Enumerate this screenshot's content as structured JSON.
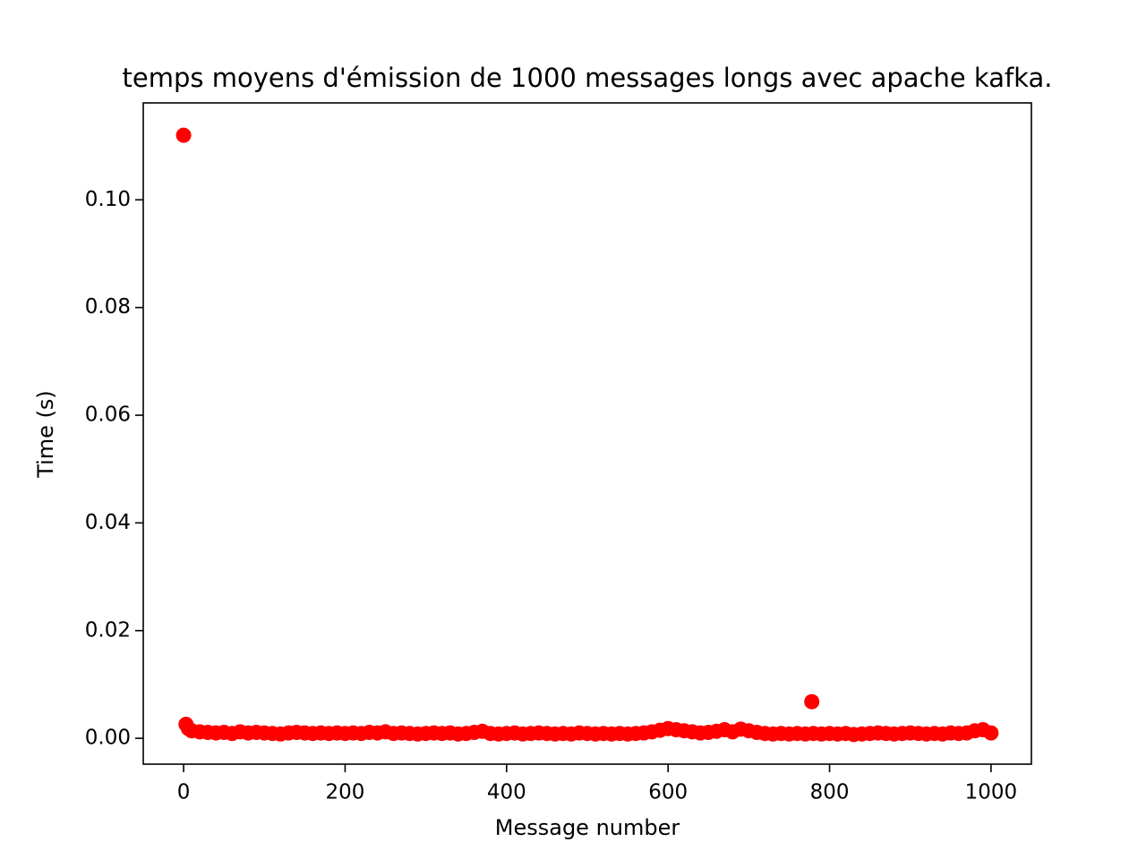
{
  "chart_data": {
    "type": "scatter",
    "title": "temps moyens d'émission de 1000 messages longs avec apache kafka.",
    "x_label": "Message number",
    "y_label": "Time (s)",
    "color": "#ff0000",
    "x": [
      0,
      3,
      6,
      10,
      20,
      30,
      40,
      50,
      60,
      70,
      80,
      90,
      100,
      110,
      120,
      130,
      140,
      150,
      160,
      170,
      180,
      190,
      200,
      210,
      220,
      230,
      240,
      250,
      260,
      270,
      280,
      290,
      300,
      310,
      320,
      330,
      340,
      350,
      360,
      370,
      380,
      390,
      400,
      410,
      420,
      430,
      440,
      450,
      460,
      470,
      480,
      490,
      500,
      510,
      520,
      530,
      540,
      550,
      560,
      570,
      580,
      590,
      600,
      610,
      620,
      630,
      640,
      650,
      660,
      670,
      680,
      690,
      700,
      710,
      720,
      730,
      740,
      750,
      760,
      770,
      778,
      780,
      790,
      800,
      810,
      820,
      830,
      840,
      850,
      860,
      870,
      880,
      890,
      900,
      910,
      920,
      930,
      940,
      950,
      960,
      970,
      980,
      990,
      1000
    ],
    "values": [
      0.112,
      0.0026,
      0.0018,
      0.0014,
      0.0012,
      0.0011,
      0.001,
      0.0011,
      0.0009,
      0.0012,
      0.001,
      0.0011,
      0.001,
      0.0009,
      0.0008,
      0.001,
      0.0011,
      0.001,
      0.0009,
      0.001,
      0.0009,
      0.001,
      0.0009,
      0.001,
      0.0009,
      0.0011,
      0.001,
      0.0012,
      0.0009,
      0.001,
      0.0009,
      0.0008,
      0.0009,
      0.001,
      0.0009,
      0.001,
      0.0008,
      0.0009,
      0.0011,
      0.0013,
      0.0009,
      0.0008,
      0.0009,
      0.001,
      0.0008,
      0.0009,
      0.001,
      0.0009,
      0.0008,
      0.0009,
      0.0008,
      0.001,
      0.0009,
      0.0008,
      0.0009,
      0.0008,
      0.0009,
      0.0008,
      0.0009,
      0.001,
      0.0012,
      0.0015,
      0.0018,
      0.0016,
      0.0014,
      0.0012,
      0.001,
      0.0011,
      0.0013,
      0.0016,
      0.0012,
      0.0017,
      0.0014,
      0.0011,
      0.0009,
      0.0008,
      0.0009,
      0.0008,
      0.0009,
      0.0008,
      0.0068,
      0.0009,
      0.0008,
      0.0009,
      0.0008,
      0.0009,
      0.0007,
      0.0008,
      0.0009,
      0.001,
      0.0009,
      0.0008,
      0.0009,
      0.001,
      0.0009,
      0.0008,
      0.0009,
      0.0008,
      0.001,
      0.0009,
      0.001,
      0.0014,
      0.0016,
      0.001
    ],
    "xlim": [
      -50,
      1050
    ],
    "ylim": [
      -0.0048,
      0.118
    ],
    "xticks": [
      0,
      200,
      400,
      600,
      800,
      1000
    ],
    "yticks": [
      {
        "value": 0,
        "label": "0.00"
      },
      {
        "value": 0.02,
        "label": "0.02"
      },
      {
        "value": 0.04,
        "label": "0.04"
      },
      {
        "value": 0.06,
        "label": "0.06"
      },
      {
        "value": 0.08,
        "label": "0.08"
      },
      {
        "value": 0.1,
        "label": "0.10"
      }
    ],
    "grid": false
  }
}
